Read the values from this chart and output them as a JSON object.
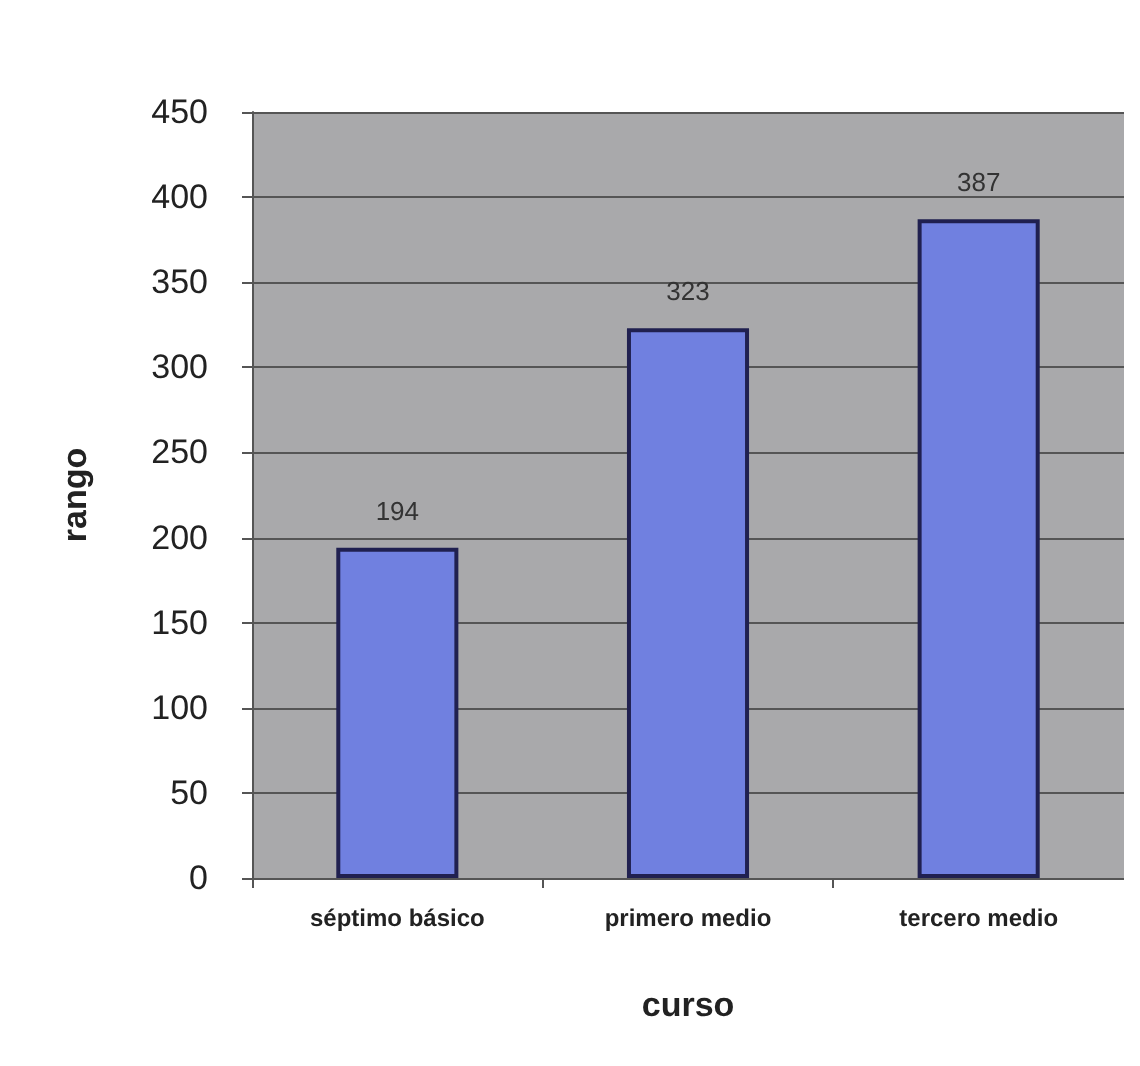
{
  "chart_data": {
    "type": "bar",
    "xlabel": "curso",
    "ylabel": "rango",
    "categories": [
      "séptimo básico",
      "primero medio",
      "tercero medio"
    ],
    "values": [
      194,
      323,
      387
    ],
    "color": "#7080e0",
    "ylim": [
      0,
      450
    ],
    "yticks": [
      0,
      50,
      100,
      150,
      200,
      250,
      300,
      350,
      400,
      450
    ],
    "grid": "y",
    "data_labels": true
  }
}
